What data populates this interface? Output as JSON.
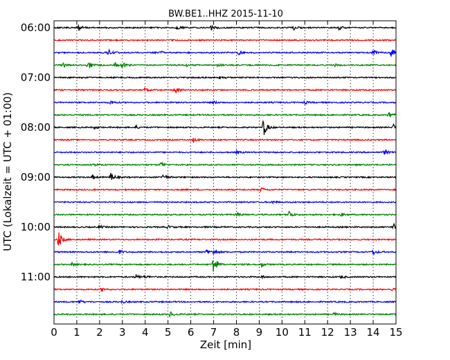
{
  "chart_data": {
    "type": "line",
    "title": "BW.BE1..HHZ 2015-11-10",
    "xlabel": "Zeit  [min]",
    "ylabel": "UTC (Lokalzeit = UTC + 01:00)",
    "xlim": [
      0,
      15
    ],
    "x_ticks": [
      "0",
      "1",
      "2",
      "3",
      "4",
      "5",
      "6",
      "7",
      "8",
      "9",
      "10",
      "11",
      "12",
      "13",
      "14",
      "15"
    ],
    "y_tick_labels": [
      "06:00",
      "07:00",
      "08:00",
      "09:00",
      "10:00",
      "11:00"
    ],
    "grid": "vertical dotted at each minute",
    "trace_interval_min": 15,
    "colors": [
      "#000000",
      "#ff0000",
      "#0000ff",
      "#008000"
    ],
    "traces": [
      {
        "start": "06:00",
        "events": [
          [
            1.05,
            8
          ],
          [
            5.4,
            2
          ],
          [
            6.9,
            3
          ],
          [
            10.5,
            3
          ],
          [
            12.5,
            3
          ]
        ]
      },
      {
        "start": "06:15",
        "events": []
      },
      {
        "start": "06:30",
        "events": [
          [
            2.4,
            5
          ],
          [
            4.7,
            2
          ],
          [
            8.1,
            3
          ],
          [
            14.0,
            7
          ],
          [
            14.8,
            6
          ]
        ]
      },
      {
        "start": "06:45",
        "events": [
          [
            0.4,
            3
          ],
          [
            1.5,
            8
          ],
          [
            2.7,
            3
          ],
          [
            3.0,
            6
          ],
          [
            5.8,
            2
          ],
          [
            7.2,
            2
          ],
          [
            12.3,
            2
          ]
        ]
      },
      {
        "start": "07:00",
        "events": [
          [
            7.3,
            2
          ]
        ]
      },
      {
        "start": "07:15",
        "events": [
          [
            4.0,
            3
          ],
          [
            5.3,
            7
          ]
        ]
      },
      {
        "start": "07:30",
        "events": [
          [
            2.5,
            3
          ],
          [
            7.0,
            2
          ],
          [
            11.0,
            2
          ]
        ]
      },
      {
        "start": "07:45",
        "events": [
          [
            14.7,
            4
          ]
        ]
      },
      {
        "start": "08:00",
        "events": [
          [
            1.8,
            2
          ],
          [
            3.6,
            2
          ],
          [
            9.2,
            13
          ],
          [
            14.9,
            5
          ]
        ]
      },
      {
        "start": "08:15",
        "events": [
          [
            6.1,
            3
          ]
        ]
      },
      {
        "start": "08:30",
        "events": [
          [
            8.0,
            2
          ],
          [
            14.5,
            4
          ]
        ]
      },
      {
        "start": "08:45",
        "events": [
          [
            1.8,
            2
          ],
          [
            4.7,
            4
          ]
        ]
      },
      {
        "start": "09:00",
        "events": [
          [
            1.7,
            3
          ],
          [
            2.5,
            7
          ],
          [
            4.8,
            6
          ]
        ]
      },
      {
        "start": "09:15",
        "events": [
          [
            9.1,
            3
          ]
        ]
      },
      {
        "start": "09:30",
        "events": [
          [
            9.6,
            2
          ]
        ]
      },
      {
        "start": "09:45",
        "events": [
          [
            8.0,
            3
          ],
          [
            10.3,
            6
          ],
          [
            12.6,
            2
          ]
        ]
      },
      {
        "start": "10:00",
        "events": [
          [
            2.0,
            2
          ],
          [
            5.0,
            2
          ],
          [
            14.9,
            8
          ]
        ]
      },
      {
        "start": "10:15",
        "events": [
          [
            0.2,
            13
          ]
        ]
      },
      {
        "start": "10:30",
        "events": [
          [
            2.9,
            3
          ],
          [
            6.7,
            4
          ],
          [
            7.0,
            4
          ],
          [
            14.0,
            4
          ]
        ]
      },
      {
        "start": "10:45",
        "events": [
          [
            0.8,
            2
          ],
          [
            7.0,
            16
          ],
          [
            9.1,
            3
          ]
        ]
      },
      {
        "start": "11:00",
        "events": [
          [
            3.6,
            3
          ],
          [
            4.0,
            2
          ],
          [
            9.1,
            2
          ],
          [
            12.6,
            2
          ]
        ]
      },
      {
        "start": "11:15",
        "events": [
          [
            2.1,
            3
          ],
          [
            14.8,
            2
          ]
        ]
      },
      {
        "start": "11:30",
        "events": [
          [
            1.1,
            3
          ],
          [
            3.0,
            2
          ]
        ]
      },
      {
        "start": "11:45",
        "events": [
          [
            5.1,
            4
          ],
          [
            12.3,
            2
          ]
        ]
      }
    ]
  }
}
